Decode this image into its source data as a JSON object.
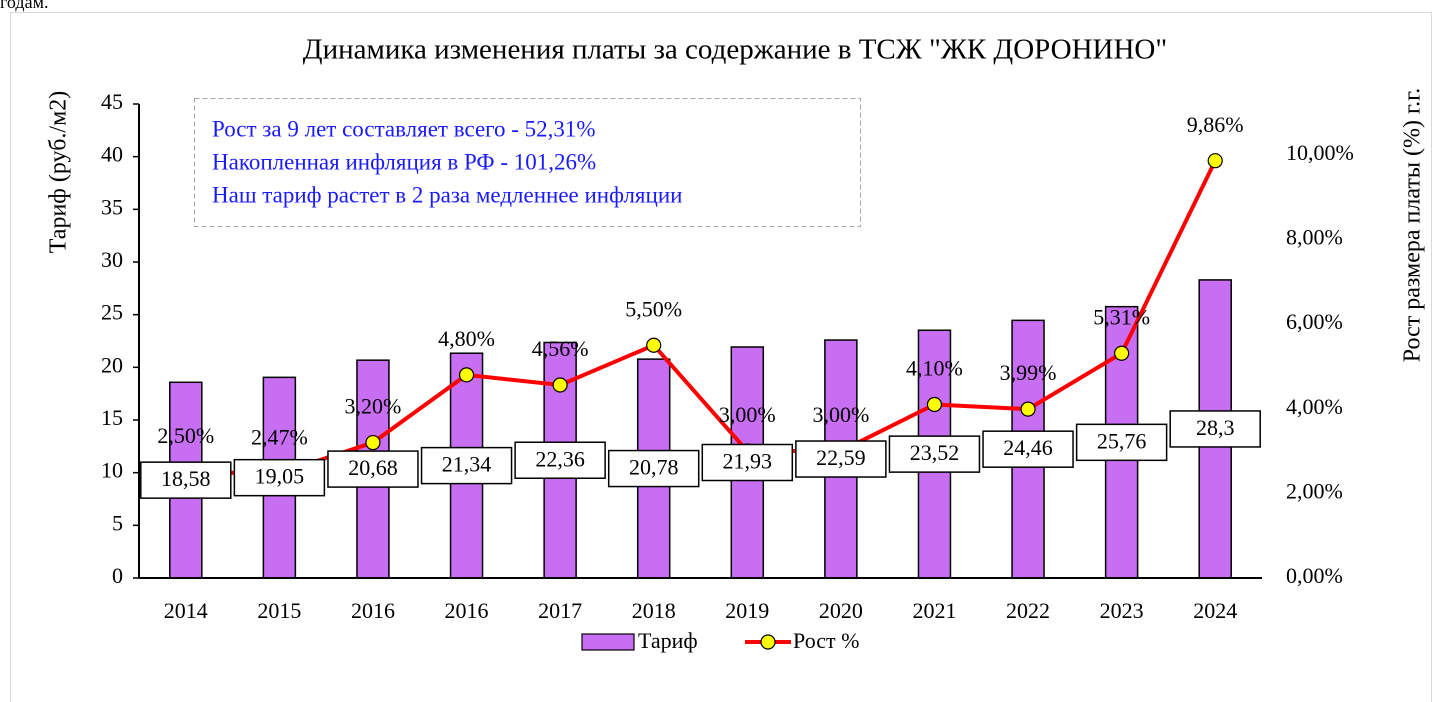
{
  "caption": "годам.",
  "chart_data": {
    "type": "bar-line",
    "title": "Динамика изменения платы за содержание в ТСЖ \"ЖК ДОРОНИНО\"",
    "ylabel": "Тариф (руб./м2)",
    "y2label": "Рост размера платы (%) г.г.",
    "annotations": [
      "Рост за 9 лет составляет всего - 52,31%",
      "Накопленная инфляция в РФ - 101,26%",
      "Наш тариф растет в 2 раза медленнее инфляции"
    ],
    "categories": [
      "2014",
      "2015",
      "2016",
      "2016",
      "2017",
      "2018",
      "2019",
      "2020",
      "2021",
      "2022",
      "2023",
      "2024"
    ],
    "series": [
      {
        "name": "Тариф",
        "type": "bar",
        "color": "#c86ef2",
        "values": [
          18.58,
          19.05,
          20.68,
          21.34,
          22.36,
          20.78,
          21.93,
          22.59,
          23.52,
          24.46,
          25.76,
          28.3
        ],
        "value_labels": [
          "18,58",
          "19,05",
          "20,68",
          "21,34",
          "22,36",
          "20,78",
          "21,93",
          "22,59",
          "23,52",
          "24,46",
          "25,76",
          "28,3"
        ]
      },
      {
        "name": "Рост %",
        "type": "line",
        "axis": "y2",
        "color": "#ff0000",
        "marker_color": "#ffff00",
        "values": [
          2.5,
          2.47,
          3.2,
          4.8,
          4.56,
          5.5,
          3.0,
          3.0,
          4.1,
          3.99,
          5.31,
          9.86
        ],
        "value_labels": [
          "2,50%",
          "2,47%",
          "3,20%",
          "4,80%",
          "4,56%",
          "5,50%",
          "3,00%",
          "3,00%",
          "4,10%",
          "3,99%",
          "5,31%",
          "9,86%"
        ]
      }
    ],
    "ylim": [
      0,
      45
    ],
    "yticks": [
      0,
      5,
      10,
      15,
      20,
      25,
      30,
      35,
      40,
      45
    ],
    "y2lim": [
      0,
      11.2
    ],
    "y2ticks": [
      {
        "value": 0,
        "label": "0,00%"
      },
      {
        "value": 2,
        "label": "2,00%"
      },
      {
        "value": 4,
        "label": "4,00%"
      },
      {
        "value": 6,
        "label": "6,00%"
      },
      {
        "value": 8,
        "label": "8,00%"
      },
      {
        "value": 10,
        "label": "10,00%"
      }
    ],
    "legend": "bottom",
    "grid": false
  }
}
